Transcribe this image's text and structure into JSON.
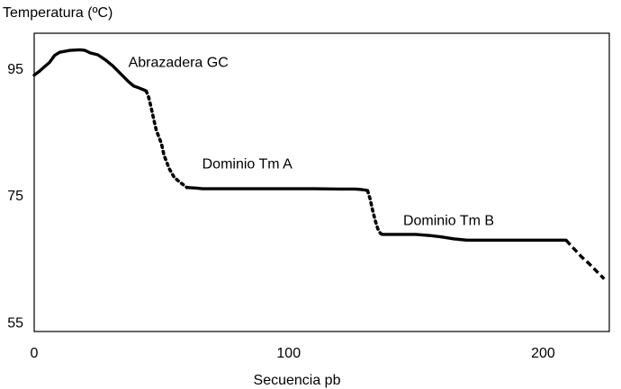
{
  "chart_data": {
    "type": "line",
    "ylabel": "Temperatura (ºC)",
    "xlabel": "Secuencia pb",
    "xlim": [
      0,
      226
    ],
    "ylim": [
      53.5,
      100.5
    ],
    "x_ticks": [
      0,
      100,
      200
    ],
    "y_ticks": [
      55,
      75,
      95
    ],
    "grid": false,
    "annotations": [
      {
        "text": "Abrazadera GC",
        "x": 37,
        "y": 95.2
      },
      {
        "text": "Dominio Tm A",
        "x": 66,
        "y": 79.2
      },
      {
        "text": "Dominio Tm B",
        "x": 145,
        "y": 70.3
      }
    ],
    "series": [
      {
        "style": "solid",
        "points": [
          [
            0,
            93.9
          ],
          [
            2,
            94.5
          ],
          [
            4,
            95.2
          ],
          [
            6,
            95.9
          ],
          [
            8,
            97.0
          ],
          [
            10,
            97.5
          ],
          [
            14,
            97.8
          ],
          [
            18,
            97.9
          ],
          [
            20,
            97.8
          ],
          [
            22,
            97.4
          ],
          [
            25,
            97.1
          ],
          [
            28,
            96.3
          ],
          [
            31,
            95.3
          ],
          [
            34,
            94.1
          ],
          [
            37,
            92.9
          ],
          [
            39,
            92.2
          ],
          [
            41,
            91.9
          ],
          [
            43,
            91.6
          ],
          [
            44,
            91.4
          ]
        ]
      },
      {
        "style": "dotted",
        "points": [
          [
            44,
            91.4
          ],
          [
            45,
            90.4
          ],
          [
            46,
            88.7
          ],
          [
            47,
            86.9
          ],
          [
            48,
            85.2
          ],
          [
            50,
            83.1
          ],
          [
            51,
            81.3
          ],
          [
            53,
            79.2
          ],
          [
            55,
            77.8
          ],
          [
            57,
            77.1
          ],
          [
            59,
            76.5
          ],
          [
            60,
            76.2
          ]
        ]
      },
      {
        "style": "solid",
        "points": [
          [
            60,
            76.2
          ],
          [
            64,
            76.1
          ],
          [
            66,
            76.0
          ],
          [
            70,
            76.0
          ],
          [
            80,
            76.0
          ],
          [
            90,
            76.0
          ],
          [
            100,
            76.0
          ],
          [
            110,
            76.0
          ],
          [
            120,
            75.95
          ],
          [
            126,
            75.95
          ],
          [
            128,
            75.9
          ],
          [
            130,
            75.8
          ],
          [
            131,
            75.7
          ]
        ]
      },
      {
        "style": "dotted",
        "points": [
          [
            131,
            75.7
          ],
          [
            132,
            74.4
          ],
          [
            133,
            72.6
          ],
          [
            134,
            71.0
          ],
          [
            135,
            69.7
          ],
          [
            136,
            69.0
          ],
          [
            137,
            68.7
          ]
        ]
      },
      {
        "style": "solid",
        "points": [
          [
            137,
            68.8
          ],
          [
            145,
            68.8
          ],
          [
            150,
            68.8
          ],
          [
            156,
            68.6
          ],
          [
            160,
            68.4
          ],
          [
            165,
            68.1
          ],
          [
            170,
            67.9
          ],
          [
            180,
            67.9
          ],
          [
            190,
            67.9
          ],
          [
            200,
            67.9
          ],
          [
            205,
            67.9
          ],
          [
            209,
            67.9
          ]
        ]
      },
      {
        "style": "dashed",
        "points": [
          [
            209,
            67.9
          ],
          [
            212,
            66.6
          ],
          [
            215,
            65.3
          ],
          [
            218,
            64.2
          ],
          [
            221,
            63.0
          ],
          [
            224,
            61.8
          ]
        ]
      }
    ]
  }
}
